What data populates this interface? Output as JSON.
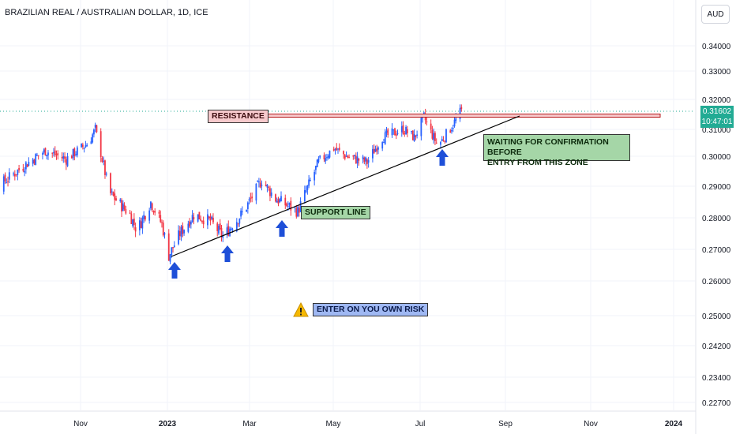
{
  "header": {
    "title": "BRAZILIAN REAL / AUSTRALIAN DOLLAR, 1D, ICE",
    "currency_button": "AUD"
  },
  "price_badge": {
    "price": "0.31602",
    "countdown": "10:47:01",
    "color": "#22ab94"
  },
  "annotations": {
    "resistance": "RESISTANCE",
    "support": "SUPPORT LINE",
    "waiting": "WAITING FOR CONFIRMATION BEFORE\n      ENTRY FROM THIS ZONE",
    "risk": "ENTER ON YOU OWN RISK",
    "warning_icon": "warning-icon",
    "arrow_icon": "up-arrow-icon"
  },
  "colors": {
    "up": "#2962ff",
    "down": "#f23645",
    "resistance": "#b71c1c",
    "support": "#000000",
    "arrow": "#1e4fd8"
  },
  "chart_data": {
    "type": "candlestick",
    "title": "BRAZILIAN REAL / AUSTRALIAN DOLLAR, 1D, ICE",
    "y_axis_ticks": [
      "0.34000",
      "0.33000",
      "0.32000",
      "0.31000",
      "0.30000",
      "0.29000",
      "0.28000",
      "0.27000",
      "0.26000",
      "0.25000",
      "0.24200",
      "0.23400",
      "0.22700"
    ],
    "x_axis_ticks": [
      "Nov",
      "2023",
      "Mar",
      "May",
      "Jul",
      "Sep",
      "Nov",
      "2024"
    ],
    "ylim": [
      0.227,
      0.345
    ],
    "last_price": 0.31602,
    "resistance_level": 0.3153,
    "support_line": {
      "from": {
        "date": "2023-01-02",
        "value": 0.2685
      },
      "to": {
        "date": "2023-09-10",
        "value": 0.3148
      }
    },
    "support_touches": [
      "2023-01-02",
      "2023-02-10",
      "2023-04-05",
      "2023-07-15"
    ],
    "close_path": [
      {
        "date": "2022-08-15",
        "value": 0.284
      },
      {
        "date": "2022-09-01",
        "value": 0.29
      },
      {
        "date": "2022-09-20",
        "value": 0.297
      },
      {
        "date": "2022-10-05",
        "value": 0.302
      },
      {
        "date": "2022-10-20",
        "value": 0.299
      },
      {
        "date": "2022-11-05",
        "value": 0.305
      },
      {
        "date": "2022-11-10",
        "value": 0.31
      },
      {
        "date": "2022-11-20",
        "value": 0.288
      },
      {
        "date": "2022-12-05",
        "value": 0.281
      },
      {
        "date": "2022-12-10",
        "value": 0.276
      },
      {
        "date": "2022-12-20",
        "value": 0.285
      },
      {
        "date": "2022-12-28",
        "value": 0.278
      },
      {
        "date": "2023-01-02",
        "value": 0.268
      },
      {
        "date": "2023-01-10",
        "value": 0.275
      },
      {
        "date": "2023-01-20",
        "value": 0.281
      },
      {
        "date": "2023-02-01",
        "value": 0.279
      },
      {
        "date": "2023-02-10",
        "value": 0.274
      },
      {
        "date": "2023-02-25",
        "value": 0.282
      },
      {
        "date": "2023-03-10",
        "value": 0.292
      },
      {
        "date": "2023-03-20",
        "value": 0.286
      },
      {
        "date": "2023-04-05",
        "value": 0.282
      },
      {
        "date": "2023-04-20",
        "value": 0.298
      },
      {
        "date": "2023-05-01",
        "value": 0.303
      },
      {
        "date": "2023-05-10",
        "value": 0.3
      },
      {
        "date": "2023-05-25",
        "value": 0.298
      },
      {
        "date": "2023-06-05",
        "value": 0.307
      },
      {
        "date": "2023-06-20",
        "value": 0.31
      },
      {
        "date": "2023-06-28",
        "value": 0.307
      },
      {
        "date": "2023-07-05",
        "value": 0.314
      },
      {
        "date": "2023-07-15",
        "value": 0.304
      },
      {
        "date": "2023-07-25",
        "value": 0.311
      },
      {
        "date": "2023-08-01",
        "value": 0.316
      }
    ]
  }
}
